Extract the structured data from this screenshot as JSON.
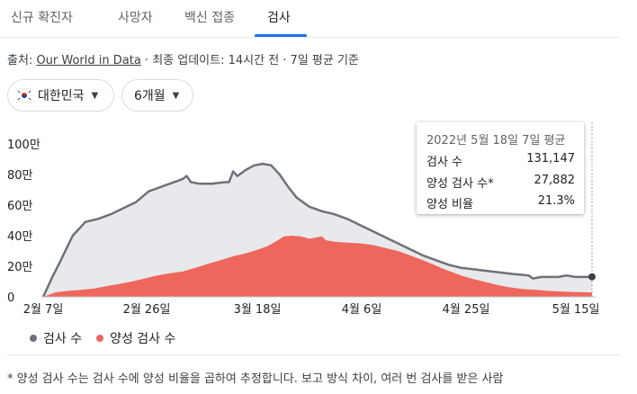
{
  "tabs": [
    {
      "label": "신규 확진자",
      "active": false
    },
    {
      "label": "사망자",
      "active": false
    },
    {
      "label": "백신 접종",
      "active": false
    },
    {
      "label": "검사",
      "active": true
    }
  ],
  "source": {
    "prefix": "출처: ",
    "link": "Our World in Data",
    "suffix": " · 최종 업데이트: 14시간 전 · 7일 평균 기준"
  },
  "filters": {
    "country": "대한민국",
    "period": "6개월"
  },
  "tooltip": {
    "date": "2022년 5월 18일 7일 평균",
    "rows": [
      {
        "label": "검사 수",
        "value": "131,147"
      },
      {
        "label": "양성 검사 수*",
        "value": "27,882"
      },
      {
        "label": "양성 비율",
        "value": "21.3%"
      }
    ]
  },
  "legend": {
    "tests": "검사 수",
    "positive": "양성 검사 수"
  },
  "footnote": "* 양성 검사 수는 검사 수에 양성 비율을 곱하여 추정합니다. 보고 방식 차이, 여러 번 검사를 받은 사람",
  "colors": {
    "tests_line": "#6e7176",
    "tests_fill": "#e8e9ec",
    "positive_fill": "#ee675c",
    "accent": "#1a73e8"
  },
  "chart_data": {
    "type": "area",
    "x_tick_labels": [
      "2월 7일",
      "2월 26일",
      "3월 18일",
      "4월 6일",
      "4월 25일",
      "5월 15일"
    ],
    "y_tick_labels": [
      "0",
      "20만",
      "40만",
      "60만",
      "80만",
      "100만"
    ],
    "ylim": [
      0,
      1000000
    ],
    "x_start": "2022-02-07",
    "x_end": "2022-05-18",
    "series": [
      {
        "name": "검사 수",
        "values": [
          [
            0,
            0
          ],
          [
            2,
            120000
          ],
          [
            4,
            230000
          ],
          [
            7,
            400000
          ],
          [
            10,
            490000
          ],
          [
            13,
            510000
          ],
          [
            16,
            540000
          ],
          [
            19,
            580000
          ],
          [
            22,
            620000
          ],
          [
            25,
            690000
          ],
          [
            28,
            720000
          ],
          [
            30,
            740000
          ],
          [
            32,
            760000
          ],
          [
            33,
            770000
          ],
          [
            34,
            790000
          ],
          [
            35,
            750000
          ],
          [
            37,
            740000
          ],
          [
            40,
            740000
          ],
          [
            43,
            750000
          ],
          [
            44,
            750000
          ],
          [
            45,
            820000
          ],
          [
            46,
            790000
          ],
          [
            48,
            830000
          ],
          [
            50,
            860000
          ],
          [
            52,
            870000
          ],
          [
            54,
            860000
          ],
          [
            56,
            800000
          ],
          [
            58,
            720000
          ],
          [
            60,
            650000
          ],
          [
            63,
            590000
          ],
          [
            66,
            560000
          ],
          [
            69,
            540000
          ],
          [
            72,
            510000
          ],
          [
            75,
            470000
          ],
          [
            78,
            430000
          ],
          [
            81,
            390000
          ],
          [
            84,
            350000
          ],
          [
            87,
            310000
          ],
          [
            90,
            270000
          ],
          [
            93,
            240000
          ],
          [
            96,
            210000
          ],
          [
            99,
            190000
          ],
          [
            102,
            180000
          ],
          [
            105,
            170000
          ],
          [
            108,
            160000
          ],
          [
            111,
            150000
          ],
          [
            113,
            145000
          ],
          [
            115,
            140000
          ],
          [
            116,
            120000
          ],
          [
            118,
            130000
          ],
          [
            120,
            130000
          ],
          [
            122,
            130000
          ],
          [
            124,
            140000
          ],
          [
            126,
            130000
          ],
          [
            128,
            130000
          ],
          [
            130,
            131147
          ]
        ]
      },
      {
        "name": "양성 검사 수",
        "values": [
          [
            0,
            0
          ],
          [
            3,
            30000
          ],
          [
            6,
            40000
          ],
          [
            9,
            45000
          ],
          [
            12,
            55000
          ],
          [
            15,
            70000
          ],
          [
            18,
            85000
          ],
          [
            21,
            100000
          ],
          [
            24,
            120000
          ],
          [
            27,
            140000
          ],
          [
            30,
            155000
          ],
          [
            33,
            165000
          ],
          [
            36,
            190000
          ],
          [
            39,
            215000
          ],
          [
            42,
            240000
          ],
          [
            45,
            265000
          ],
          [
            48,
            285000
          ],
          [
            51,
            310000
          ],
          [
            53,
            330000
          ],
          [
            55,
            360000
          ],
          [
            57,
            395000
          ],
          [
            59,
            400000
          ],
          [
            61,
            395000
          ],
          [
            63,
            380000
          ],
          [
            65,
            390000
          ],
          [
            66,
            395000
          ],
          [
            67,
            370000
          ],
          [
            69,
            360000
          ],
          [
            72,
            355000
          ],
          [
            75,
            350000
          ],
          [
            78,
            340000
          ],
          [
            81,
            320000
          ],
          [
            84,
            300000
          ],
          [
            87,
            270000
          ],
          [
            90,
            240000
          ],
          [
            93,
            205000
          ],
          [
            96,
            170000
          ],
          [
            99,
            140000
          ],
          [
            102,
            115000
          ],
          [
            105,
            95000
          ],
          [
            108,
            75000
          ],
          [
            111,
            60000
          ],
          [
            114,
            50000
          ],
          [
            117,
            45000
          ],
          [
            120,
            38000
          ],
          [
            123,
            35000
          ],
          [
            126,
            32000
          ],
          [
            128,
            30000
          ],
          [
            130,
            27882
          ]
        ]
      }
    ],
    "legend_position": "bottom-left",
    "grid": false
  }
}
